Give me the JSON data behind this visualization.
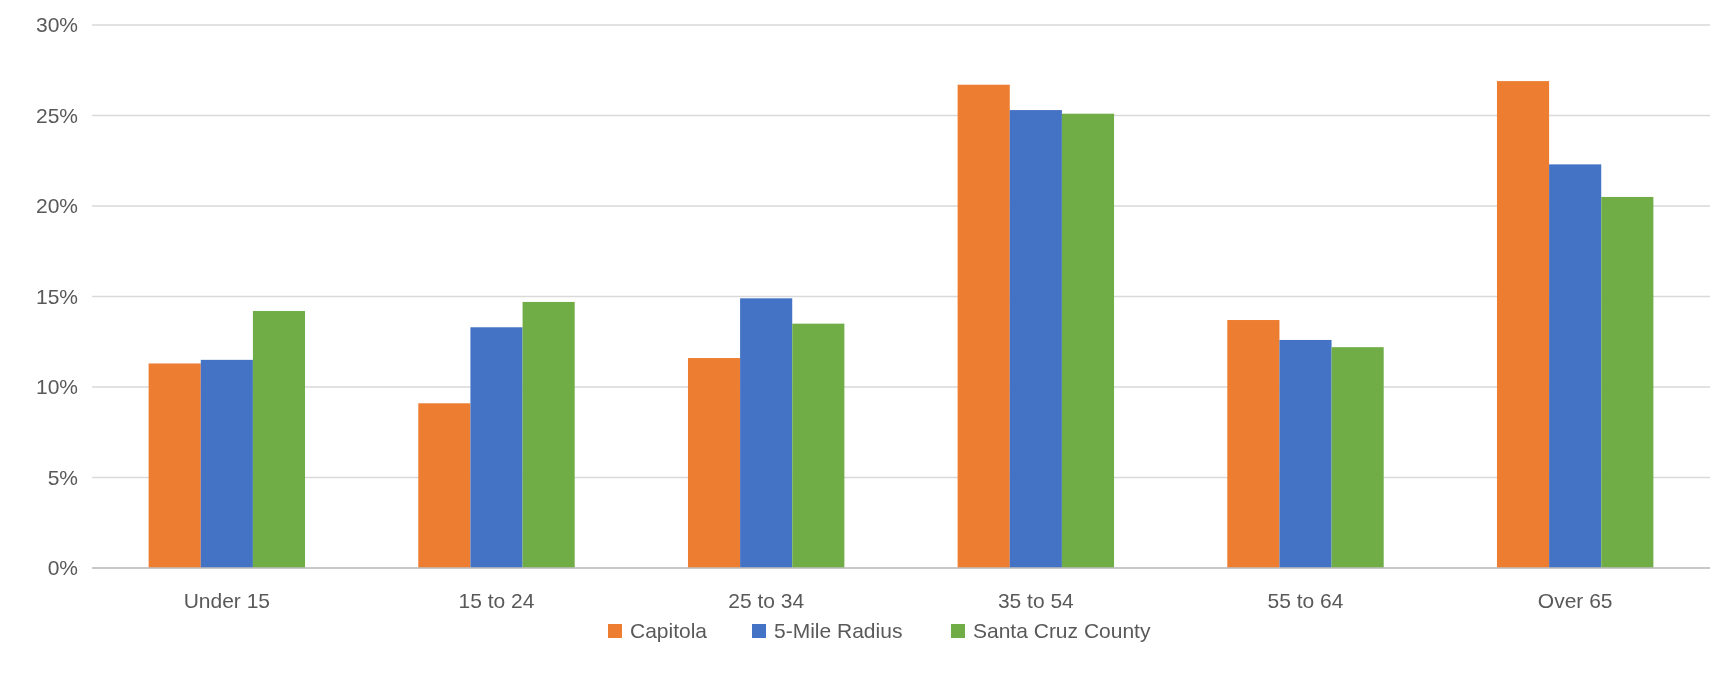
{
  "chart_data": {
    "type": "bar",
    "categories": [
      "Under 15",
      "15 to 24",
      "25 to 34",
      "35 to 54",
      "55 to 64",
      "Over 65"
    ],
    "series": [
      {
        "name": "Capitola",
        "color": "#ed7d31",
        "values": [
          11.3,
          9.1,
          11.6,
          26.7,
          13.7,
          26.9
        ]
      },
      {
        "name": "5-Mile Radius",
        "color": "#4472c4",
        "values": [
          11.5,
          13.3,
          14.9,
          25.3,
          12.6,
          22.3
        ]
      },
      {
        "name": "Santa Cruz County",
        "color": "#70ad47",
        "values": [
          14.2,
          14.7,
          13.5,
          25.1,
          12.2,
          20.5
        ]
      }
    ],
    "ylim": [
      0,
      30
    ],
    "yticks": [
      {
        "value": 0,
        "label": "0%"
      },
      {
        "value": 5,
        "label": "5%"
      },
      {
        "value": 10,
        "label": "10%"
      },
      {
        "value": 15,
        "label": "15%"
      },
      {
        "value": 20,
        "label": "20%"
      },
      {
        "value": 25,
        "label": "25%"
      },
      {
        "value": 30,
        "label": "30%"
      }
    ],
    "grid": "y",
    "legend": "bottom"
  }
}
